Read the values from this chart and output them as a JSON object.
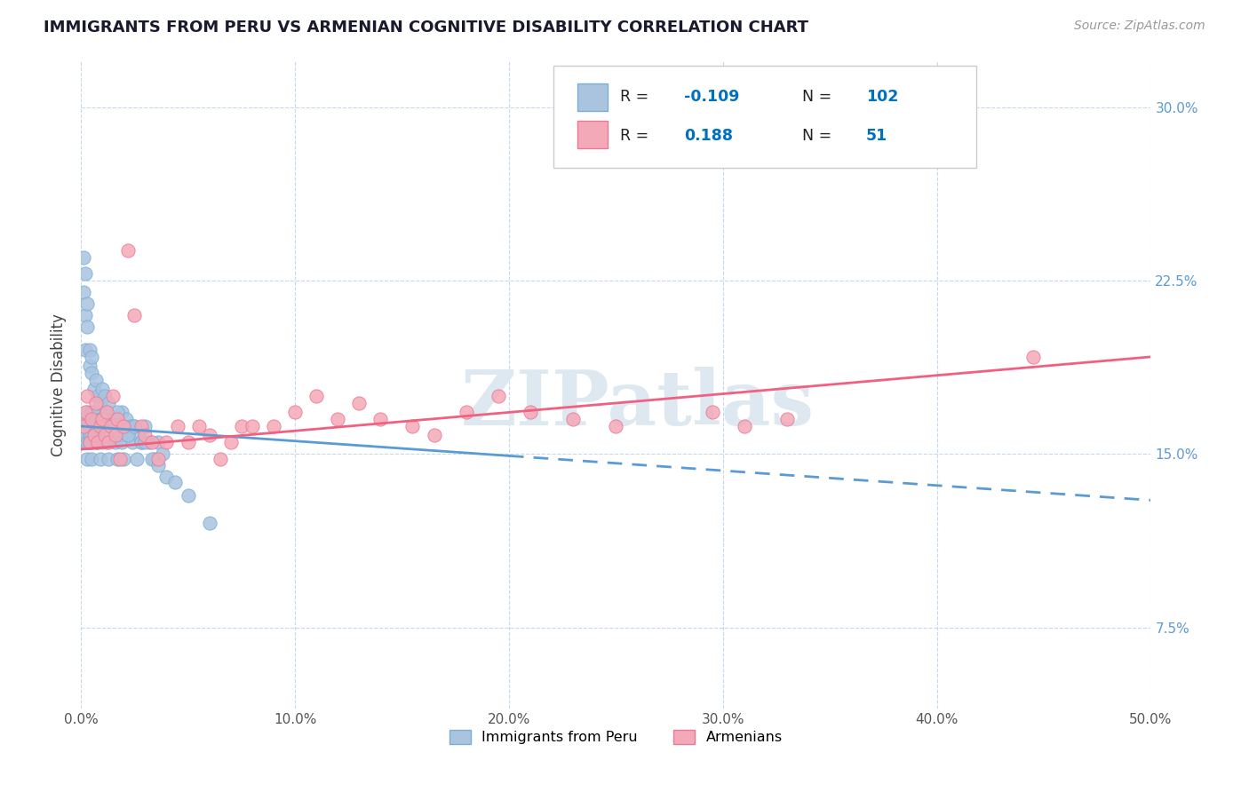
{
  "title": "IMMIGRANTS FROM PERU VS ARMENIAN COGNITIVE DISABILITY CORRELATION CHART",
  "source": "Source: ZipAtlas.com",
  "ylabel": "Cognitive Disability",
  "xlim": [
    0.0,
    0.5
  ],
  "ylim": [
    0.04,
    0.32
  ],
  "xticks": [
    0.0,
    0.1,
    0.2,
    0.3,
    0.4,
    0.5
  ],
  "yticks_right": [
    0.075,
    0.15,
    0.225,
    0.3
  ],
  "ytick_labels_right": [
    "7.5%",
    "15.0%",
    "22.5%",
    "30.0%"
  ],
  "xtick_labels": [
    "0.0%",
    "10.0%",
    "20.0%",
    "30.0%",
    "40.0%",
    "50.0%"
  ],
  "series1_name": "Immigrants from Peru",
  "series2_name": "Armenians",
  "series1_color": "#aac4e0",
  "series2_color": "#f4a9b8",
  "series1_edge": "#7aafd4",
  "series2_edge": "#e87a95",
  "trendline1_color": "#5b9bd5",
  "trendline2_color": "#f06080",
  "R1": -0.109,
  "N1": 102,
  "R2": 0.188,
  "N2": 51,
  "legend_R_color": "#0070c0",
  "background_color": "#ffffff",
  "grid_color": "#c8d8e8",
  "watermark": "ZIPatlas",
  "trendline1_y0": 0.162,
  "trendline1_y1": 0.13,
  "trendline2_y0": 0.152,
  "trendline2_y1": 0.192,
  "series1_x": [
    0.001,
    0.001,
    0.001,
    0.001,
    0.002,
    0.002,
    0.002,
    0.002,
    0.003,
    0.003,
    0.003,
    0.003,
    0.004,
    0.004,
    0.004,
    0.004,
    0.005,
    0.005,
    0.005,
    0.005,
    0.005,
    0.006,
    0.006,
    0.006,
    0.006,
    0.007,
    0.007,
    0.007,
    0.008,
    0.008,
    0.008,
    0.009,
    0.009,
    0.009,
    0.01,
    0.01,
    0.01,
    0.01,
    0.011,
    0.011,
    0.012,
    0.012,
    0.013,
    0.013,
    0.014,
    0.014,
    0.015,
    0.016,
    0.016,
    0.017,
    0.017,
    0.018,
    0.018,
    0.019,
    0.019,
    0.02,
    0.02,
    0.021,
    0.022,
    0.023,
    0.024,
    0.025,
    0.026,
    0.027,
    0.028,
    0.03,
    0.032,
    0.034,
    0.036,
    0.038,
    0.001,
    0.001,
    0.002,
    0.002,
    0.002,
    0.003,
    0.003,
    0.004,
    0.004,
    0.005,
    0.005,
    0.006,
    0.007,
    0.008,
    0.009,
    0.01,
    0.011,
    0.012,
    0.013,
    0.015,
    0.017,
    0.019,
    0.022,
    0.025,
    0.028,
    0.03,
    0.033,
    0.036,
    0.04,
    0.044,
    0.05,
    0.06
  ],
  "series1_y": [
    0.16,
    0.155,
    0.165,
    0.158,
    0.162,
    0.155,
    0.158,
    0.165,
    0.168,
    0.155,
    0.162,
    0.148,
    0.165,
    0.158,
    0.155,
    0.162,
    0.168,
    0.155,
    0.162,
    0.148,
    0.158,
    0.165,
    0.155,
    0.168,
    0.162,
    0.158,
    0.165,
    0.155,
    0.162,
    0.168,
    0.155,
    0.162,
    0.148,
    0.165,
    0.158,
    0.162,
    0.155,
    0.165,
    0.158,
    0.162,
    0.155,
    0.168,
    0.162,
    0.148,
    0.165,
    0.158,
    0.162,
    0.155,
    0.162,
    0.148,
    0.165,
    0.158,
    0.162,
    0.155,
    0.168,
    0.162,
    0.148,
    0.165,
    0.158,
    0.162,
    0.155,
    0.162,
    0.148,
    0.158,
    0.155,
    0.162,
    0.155,
    0.148,
    0.155,
    0.15,
    0.235,
    0.22,
    0.21,
    0.228,
    0.195,
    0.215,
    0.205,
    0.195,
    0.188,
    0.192,
    0.185,
    0.178,
    0.182,
    0.175,
    0.172,
    0.178,
    0.175,
    0.168,
    0.172,
    0.165,
    0.168,
    0.162,
    0.158,
    0.162,
    0.155,
    0.155,
    0.148,
    0.145,
    0.14,
    0.138,
    0.132,
    0.12
  ],
  "series2_x": [
    0.001,
    0.002,
    0.003,
    0.004,
    0.005,
    0.006,
    0.007,
    0.008,
    0.009,
    0.01,
    0.011,
    0.012,
    0.013,
    0.014,
    0.015,
    0.016,
    0.017,
    0.018,
    0.02,
    0.022,
    0.025,
    0.028,
    0.03,
    0.033,
    0.036,
    0.04,
    0.045,
    0.05,
    0.055,
    0.06,
    0.065,
    0.07,
    0.075,
    0.08,
    0.09,
    0.1,
    0.11,
    0.12,
    0.13,
    0.14,
    0.155,
    0.165,
    0.18,
    0.195,
    0.21,
    0.23,
    0.25,
    0.295,
    0.31,
    0.33,
    0.445
  ],
  "series2_y": [
    0.162,
    0.168,
    0.175,
    0.155,
    0.165,
    0.158,
    0.172,
    0.155,
    0.162,
    0.165,
    0.158,
    0.168,
    0.155,
    0.162,
    0.175,
    0.158,
    0.165,
    0.148,
    0.162,
    0.238,
    0.21,
    0.162,
    0.158,
    0.155,
    0.148,
    0.155,
    0.162,
    0.155,
    0.162,
    0.158,
    0.148,
    0.155,
    0.162,
    0.162,
    0.162,
    0.168,
    0.175,
    0.165,
    0.172,
    0.165,
    0.162,
    0.158,
    0.168,
    0.175,
    0.168,
    0.165,
    0.162,
    0.168,
    0.162,
    0.165,
    0.192
  ]
}
